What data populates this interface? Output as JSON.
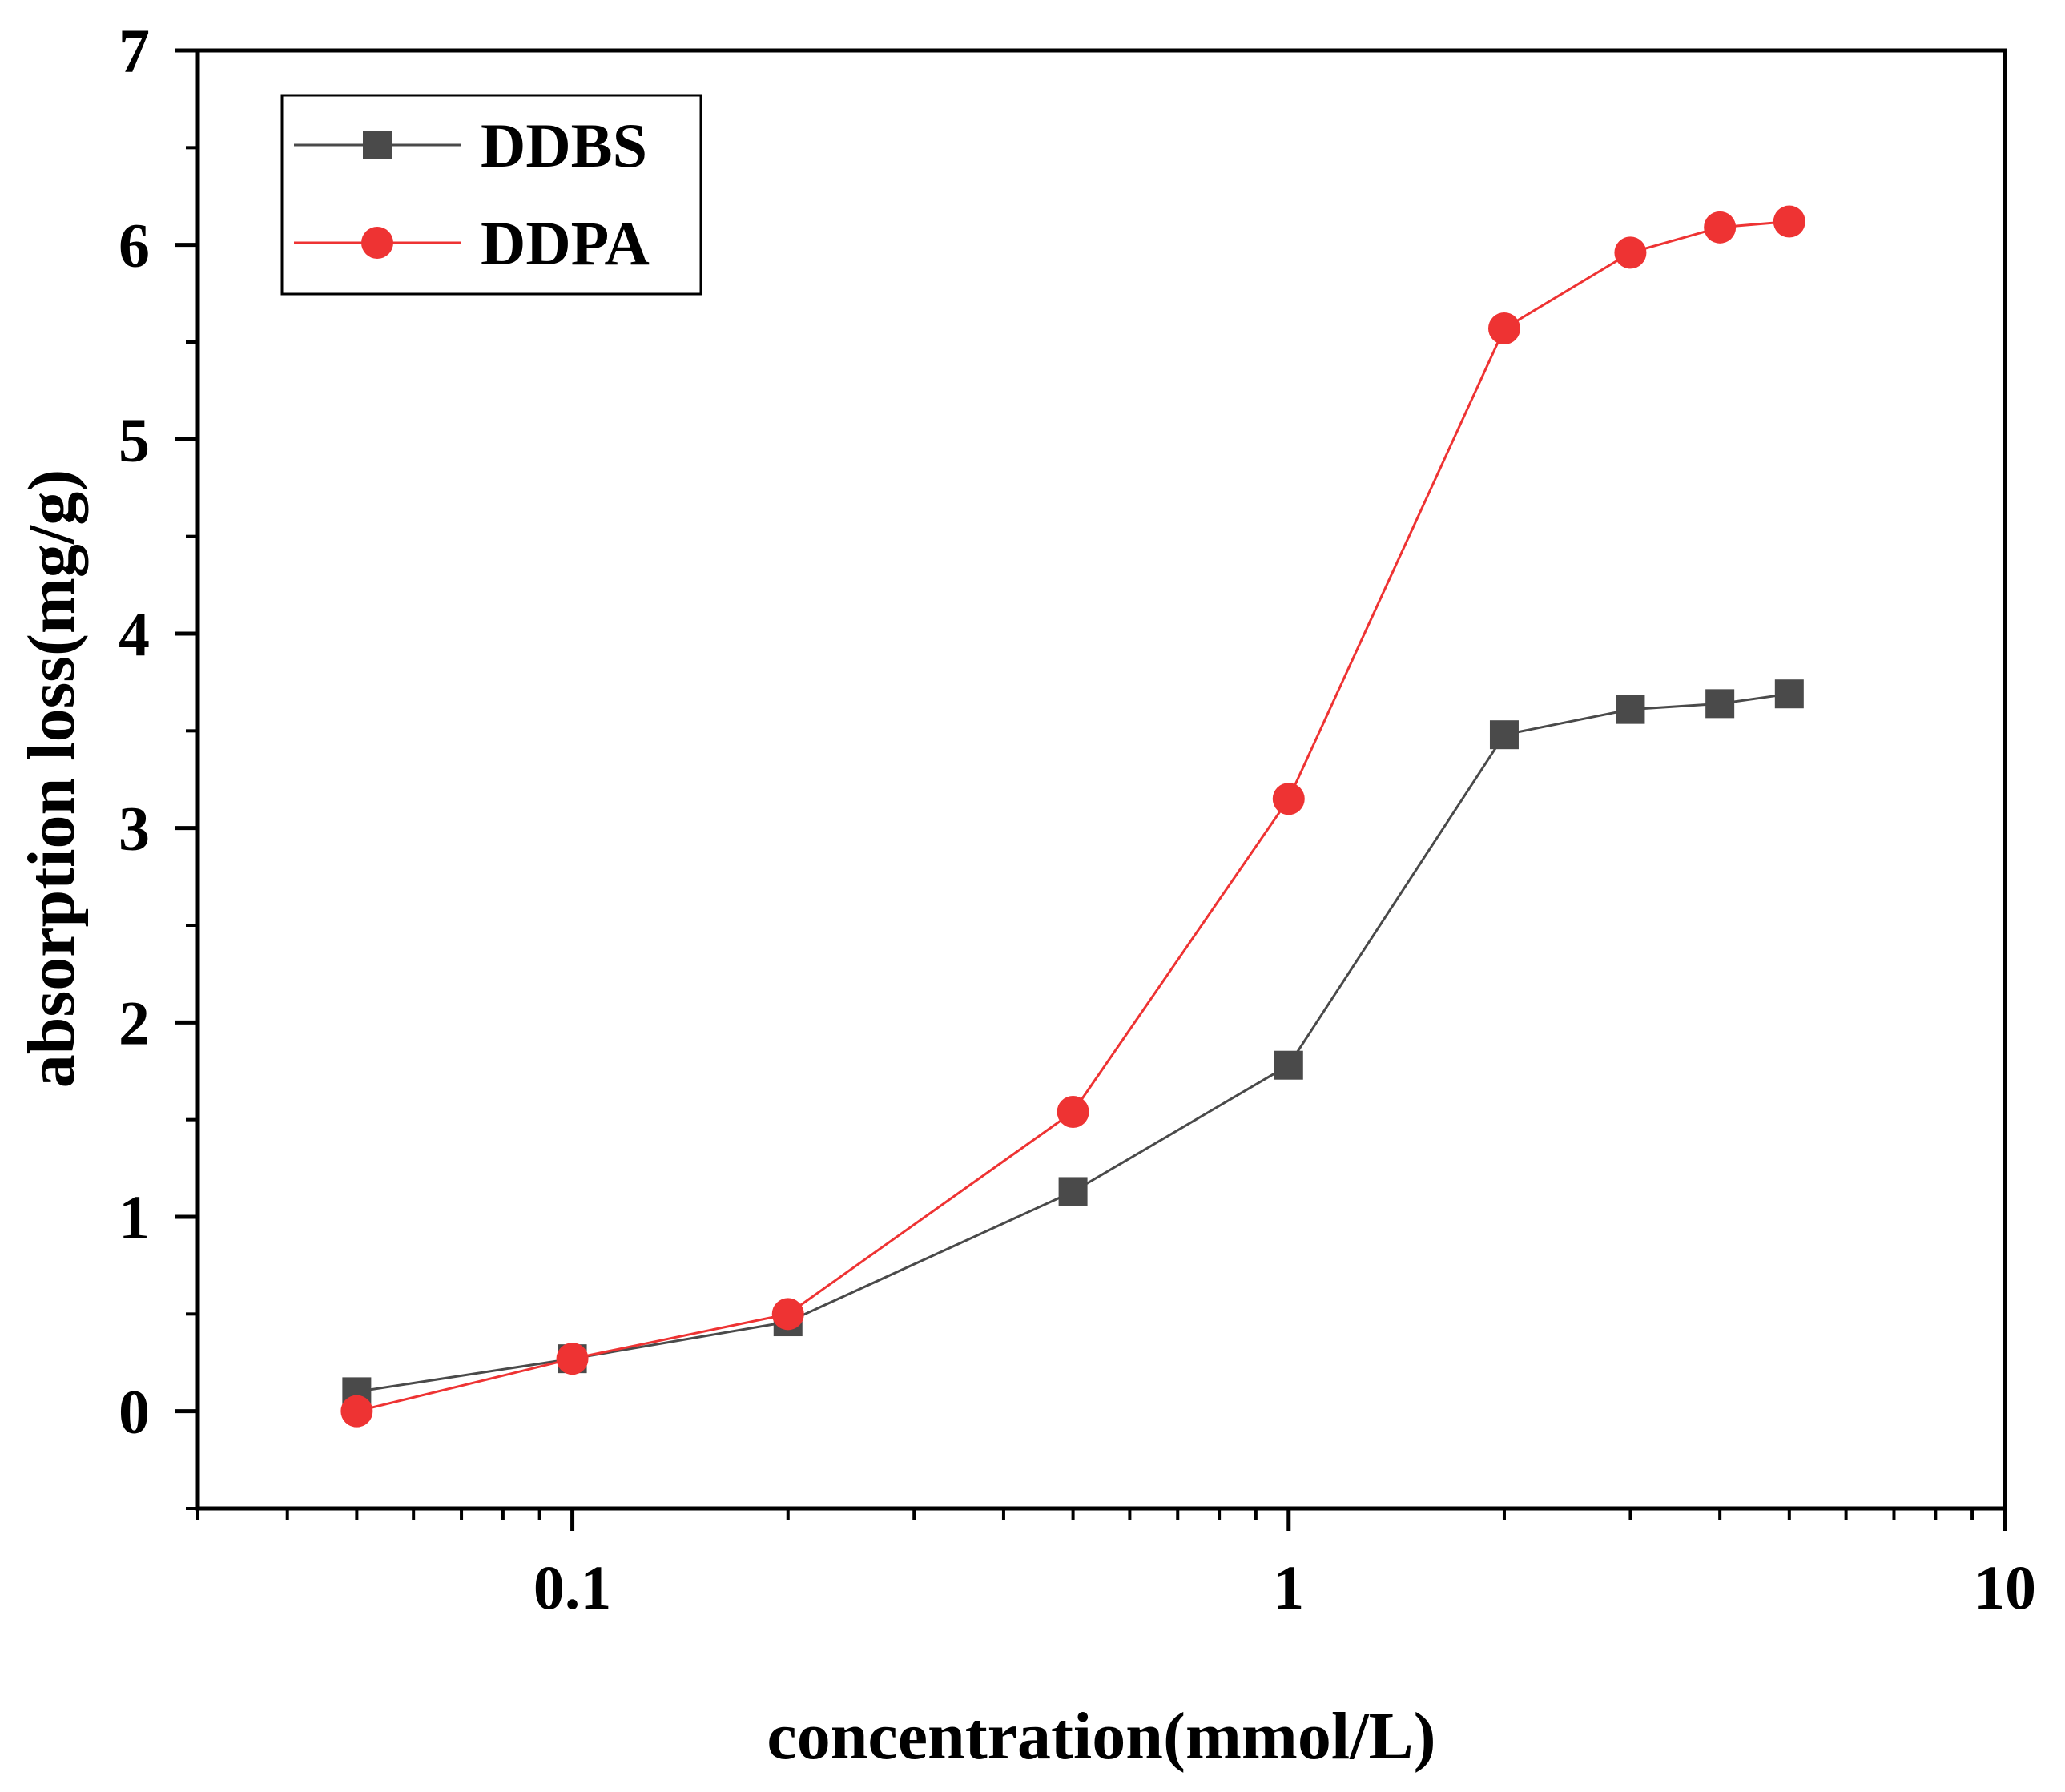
{
  "chart_data": {
    "type": "line",
    "xscale": "log",
    "xlabel": "concentration(mmol/L)",
    "ylabel": "absorption loss(mg/g)",
    "xlim": [
      0.03,
      10
    ],
    "ylim": [
      -0.5,
      7
    ],
    "x_ticks": [
      {
        "value": 0.1,
        "label": "0.1"
      },
      {
        "value": 1,
        "label": "1"
      },
      {
        "value": 10,
        "label": "10"
      }
    ],
    "y_ticks": [
      {
        "value": 0,
        "label": "0"
      },
      {
        "value": 1,
        "label": "1"
      },
      {
        "value": 2,
        "label": "2"
      },
      {
        "value": 3,
        "label": "3"
      },
      {
        "value": 4,
        "label": "4"
      },
      {
        "value": 5,
        "label": "5"
      },
      {
        "value": 6,
        "label": "6"
      },
      {
        "value": 7,
        "label": "7"
      }
    ],
    "legend_position": "top-left",
    "series": [
      {
        "name": "DDBS",
        "color": "#4a4a4a",
        "marker": "square",
        "x": [
          0.05,
          0.1,
          0.2,
          0.5,
          1,
          2,
          3,
          4,
          5
        ],
        "values": [
          0.1,
          0.27,
          0.46,
          1.13,
          1.78,
          3.48,
          3.61,
          3.64,
          3.69
        ]
      },
      {
        "name": "DDPA",
        "color": "#ee3333",
        "marker": "circle",
        "x": [
          0.05,
          0.1,
          0.2,
          0.5,
          1,
          2,
          3,
          4,
          5
        ],
        "values": [
          0.0,
          0.27,
          0.5,
          1.54,
          3.15,
          5.57,
          5.96,
          6.09,
          6.12
        ]
      }
    ]
  }
}
